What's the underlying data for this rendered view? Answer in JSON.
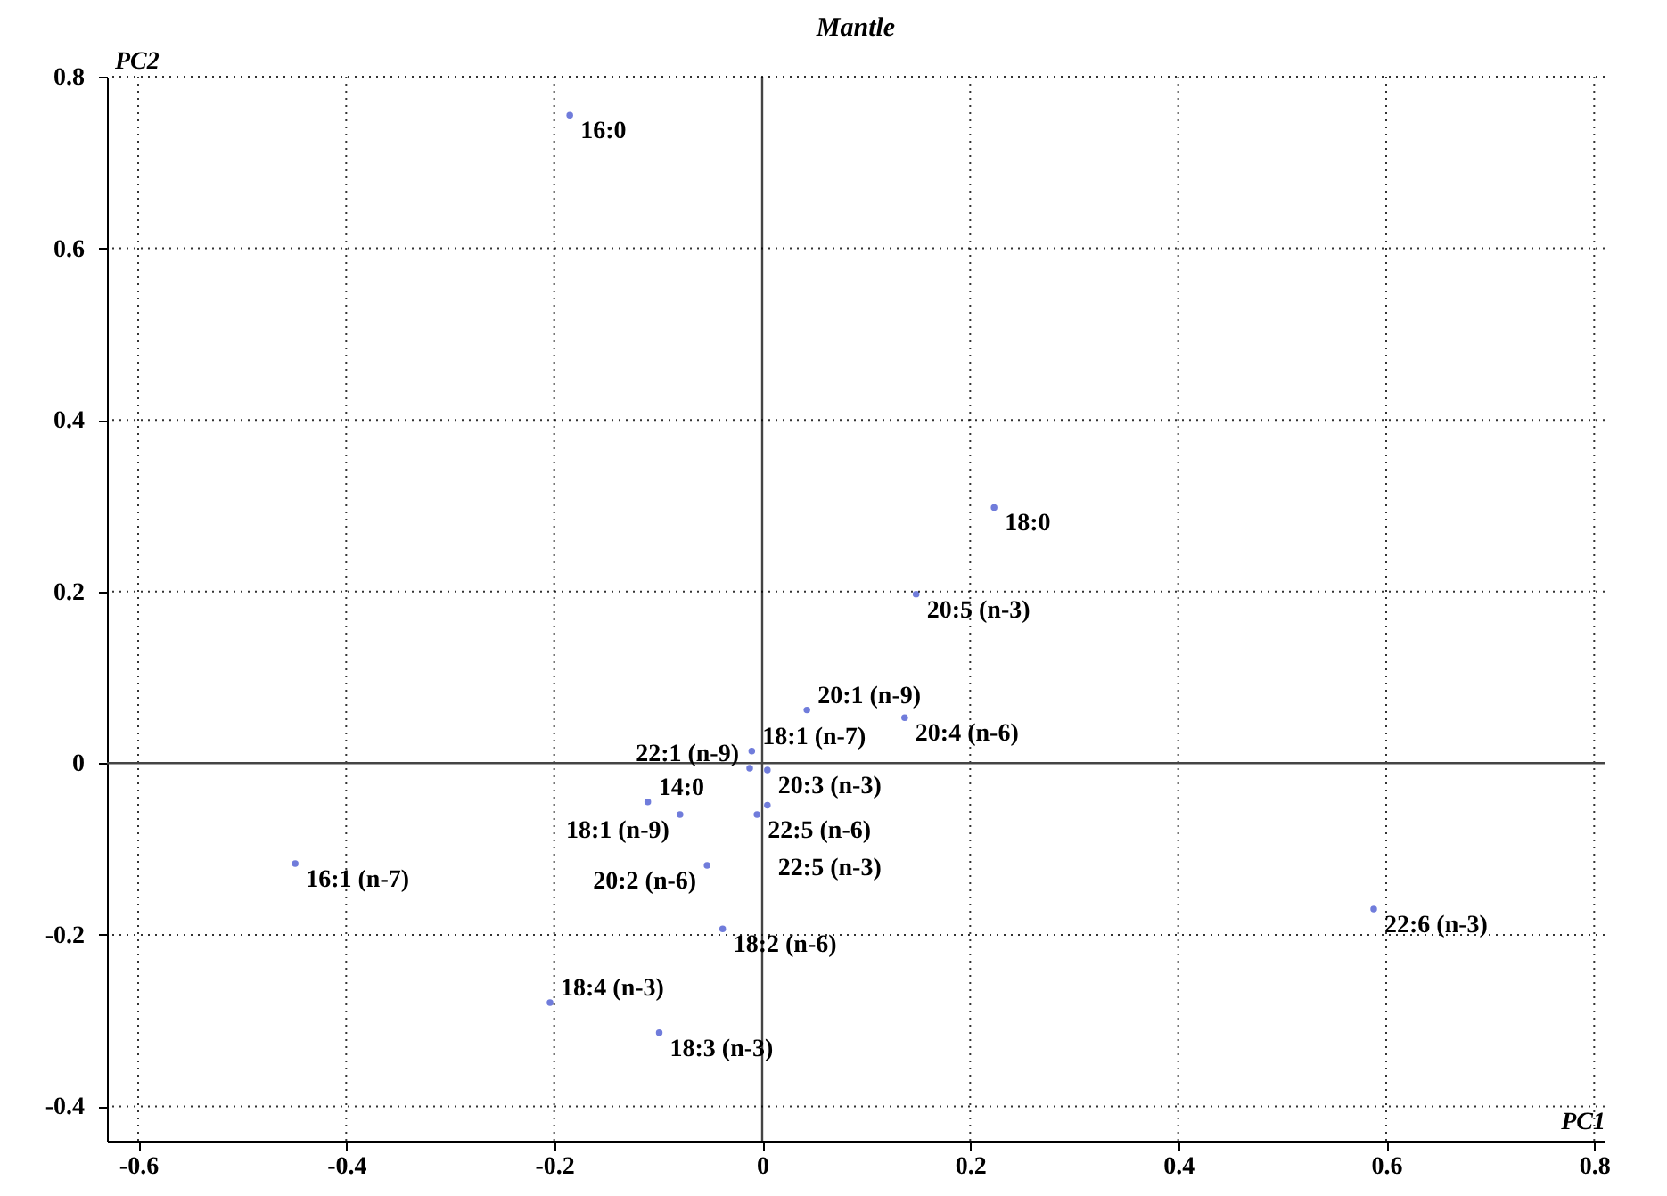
{
  "chart_data": {
    "type": "scatter",
    "title": "Mantle",
    "xlabel": "PC1",
    "ylabel": "PC2",
    "xlim": [
      -0.63,
      0.81
    ],
    "ylim": [
      -0.44,
      0.8
    ],
    "xticks": [
      -0.6,
      -0.4,
      -0.2,
      0,
      0.2,
      0.4,
      0.6,
      0.8
    ],
    "yticks": [
      -0.4,
      -0.2,
      0,
      0.2,
      0.4,
      0.6,
      0.8
    ],
    "grid": true,
    "marker": "circle",
    "series": [
      {
        "name": "16:0",
        "color": "#3344cc",
        "x": [
          -0.185
        ],
        "values": [
          0.755
        ]
      },
      {
        "name": "18:0",
        "color": "#3344cc",
        "x": [
          0.223
        ],
        "values": [
          0.298
        ]
      },
      {
        "name": "20:5 (n-3)",
        "color": "#3344cc",
        "x": [
          0.148
        ],
        "values": [
          0.197
        ]
      },
      {
        "name": "20:1 (n-9)",
        "color": "#3344cc",
        "x": [
          0.043
        ],
        "values": [
          0.062
        ]
      },
      {
        "name": "20:4 (n-6)",
        "color": "#3344cc",
        "x": [
          0.137
        ],
        "values": [
          0.053
        ]
      },
      {
        "name": "18:1 (n-7)",
        "color": "#3344cc",
        "x": [
          -0.01
        ],
        "values": [
          0.014
        ]
      },
      {
        "name": "22:1 (n-9)",
        "color": "#3344cc",
        "x": [
          -0.012
        ],
        "values": [
          -0.006
        ]
      },
      {
        "name": "20:3 (n-3)",
        "color": "#3344cc",
        "x": [
          0.005
        ],
        "values": [
          -0.008
        ]
      },
      {
        "name": "14:0",
        "color": "#3344cc",
        "x": [
          -0.11
        ],
        "values": [
          -0.045
        ]
      },
      {
        "name": "18:1 (n-9)",
        "color": "#3344cc",
        "x": [
          -0.079
        ],
        "values": [
          -0.06
        ]
      },
      {
        "name": "22:5 (n-6)",
        "color": "#3344cc",
        "x": [
          -0.005
        ],
        "values": [
          -0.06
        ]
      },
      {
        "name": "22:5 (n-3)",
        "color": "#3344cc",
        "x": [
          0.005
        ],
        "values": [
          -0.049
        ]
      },
      {
        "name": "20:2 (n-6)",
        "color": "#3344cc",
        "x": [
          -0.053
        ],
        "values": [
          -0.119
        ]
      },
      {
        "name": "16:1 (n-7)",
        "color": "#3344cc",
        "x": [
          -0.449
        ],
        "values": [
          -0.117
        ]
      },
      {
        "name": "18:2 (n-6)",
        "color": "#3344cc",
        "x": [
          -0.038
        ],
        "values": [
          -0.193
        ]
      },
      {
        "name": "18:4 (n-3)",
        "color": "#3344cc",
        "x": [
          -0.204
        ],
        "values": [
          -0.279
        ]
      },
      {
        "name": "18:3 (n-3)",
        "color": "#3344cc",
        "x": [
          -0.099
        ],
        "values": [
          -0.314
        ]
      },
      {
        "name": "22:6 (n-3)",
        "color": "#3344cc",
        "x": [
          0.588
        ],
        "values": [
          -0.17
        ]
      }
    ]
  }
}
